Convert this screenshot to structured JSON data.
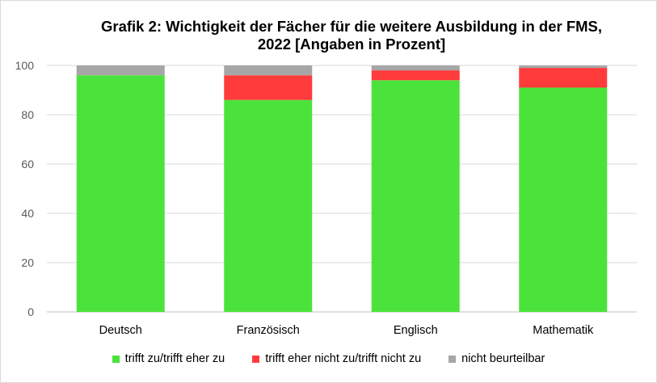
{
  "chart_data": {
    "type": "bar",
    "stacked": true,
    "title_lines": [
      "Grafik 2: Wichtigkeit der Fächer für die weitere Ausbildung in der FMS,",
      "2022 [Angaben in Prozent]"
    ],
    "xlabel": "",
    "ylabel": "",
    "categories": [
      "Deutsch",
      "Französisch",
      "Englisch",
      "Mathematik"
    ],
    "series": [
      {
        "name": "trifft zu/trifft eher zu",
        "color": "#4be33b",
        "values": [
          96,
          86,
          94,
          91
        ]
      },
      {
        "name": "trifft eher nicht zu/trifft nicht zu",
        "color": "#ff3b3b",
        "values": [
          0,
          10,
          4,
          8
        ]
      },
      {
        "name": "nicht beurteilbar",
        "color": "#a6a6a6",
        "values": [
          4,
          4,
          2,
          1
        ]
      }
    ],
    "ylim": [
      0,
      100
    ],
    "yticks": [
      0,
      20,
      40,
      60,
      80,
      100
    ],
    "grid": true,
    "legend_position": "bottom"
  }
}
